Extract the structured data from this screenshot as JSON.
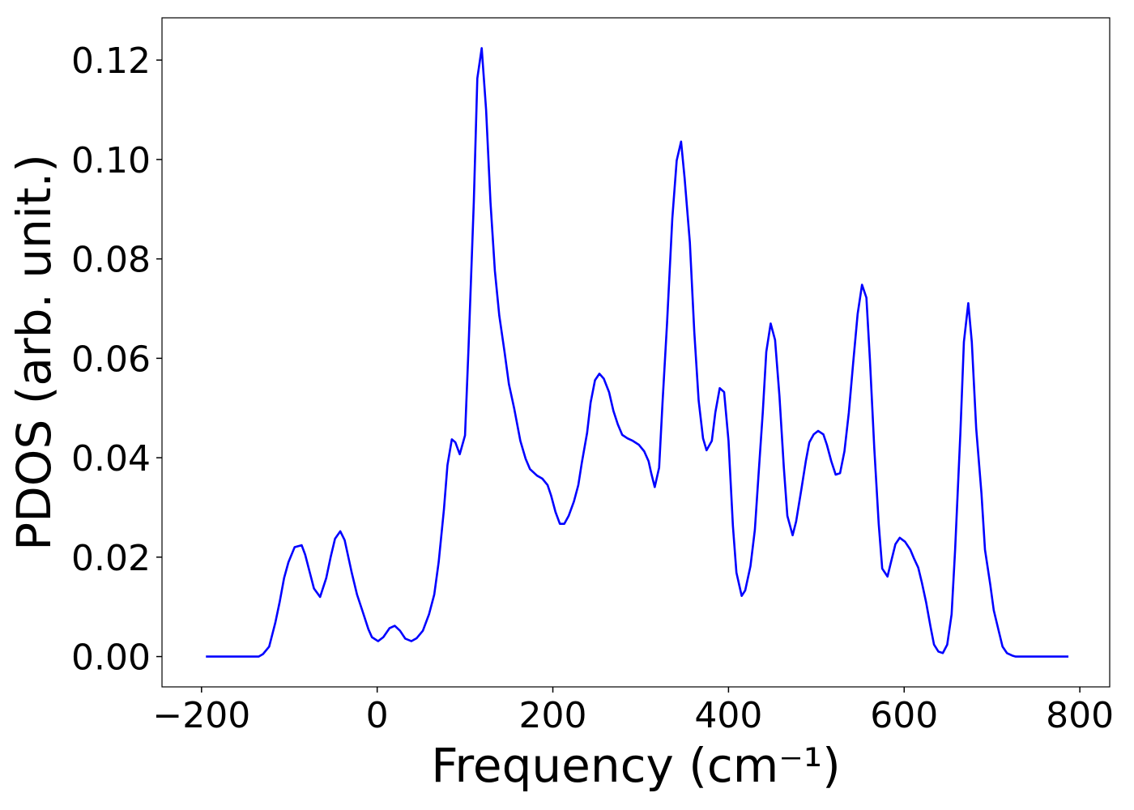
{
  "chart_data": {
    "type": "line",
    "xlabel": "Frequency (cm⁻¹)",
    "ylabel": "PDOS (arb. unit.)",
    "color": "#0000ff",
    "x": [
      -195,
      -135,
      -130,
      -123,
      -116,
      -111,
      -106,
      -101,
      -94,
      -86,
      -82,
      -72,
      -65,
      -58,
      -53,
      -48,
      -42,
      -37,
      -29,
      -23,
      -17,
      -10,
      -6,
      1,
      7,
      14,
      20,
      26,
      32,
      39,
      45,
      52,
      59,
      65,
      70,
      76,
      80,
      85,
      89,
      94,
      100,
      104,
      110,
      114,
      119,
      124,
      129,
      134,
      139,
      145,
      150,
      156,
      163,
      169,
      174,
      182,
      188,
      194,
      198,
      203,
      208,
      213,
      218,
      224,
      229,
      233,
      239,
      243,
      248,
      253,
      258,
      264,
      269,
      274,
      279,
      285,
      291,
      298,
      304,
      309,
      312,
      316,
      321,
      325,
      330,
      336,
      341,
      346,
      350,
      356,
      361,
      366,
      371,
      375,
      381,
      385,
      390,
      395,
      400,
      405,
      409,
      415,
      419,
      425,
      430,
      434,
      439,
      443,
      448,
      453,
      458,
      463,
      467,
      473,
      477,
      483,
      488,
      492,
      497,
      502,
      508,
      512,
      517,
      522,
      527,
      532,
      537,
      542,
      547,
      552,
      557,
      561,
      566,
      571,
      575,
      581,
      585,
      590,
      595,
      601,
      607,
      611,
      616,
      620,
      625,
      630,
      634,
      639,
      644,
      649,
      654,
      658,
      664,
      668,
      673,
      677,
      682,
      688,
      692,
      698,
      702,
      708,
      712,
      717,
      723,
      727,
      787
    ],
    "values": [
      0,
      0,
      0.0005,
      0.002,
      0.0068,
      0.011,
      0.0158,
      0.019,
      0.022,
      0.0224,
      0.0205,
      0.0137,
      0.012,
      0.0158,
      0.02,
      0.0237,
      0.0252,
      0.0234,
      0.0169,
      0.0125,
      0.0093,
      0.0055,
      0.0039,
      0.0031,
      0.0039,
      0.0057,
      0.0062,
      0.0052,
      0.0036,
      0.0031,
      0.0037,
      0.0052,
      0.0085,
      0.0125,
      0.019,
      0.0296,
      0.0385,
      0.0437,
      0.0431,
      0.0407,
      0.0445,
      0.0621,
      0.0914,
      0.1163,
      0.1224,
      0.11,
      0.0914,
      0.0776,
      0.0686,
      0.0613,
      0.0548,
      0.0499,
      0.0434,
      0.0398,
      0.0377,
      0.0364,
      0.0358,
      0.0345,
      0.0324,
      0.0291,
      0.0267,
      0.0267,
      0.0283,
      0.0312,
      0.0345,
      0.039,
      0.045,
      0.0511,
      0.0556,
      0.0569,
      0.0559,
      0.0532,
      0.0494,
      0.0467,
      0.0446,
      0.0439,
      0.0434,
      0.0426,
      0.0413,
      0.0393,
      0.0369,
      0.0341,
      0.038,
      0.0515,
      0.067,
      0.0881,
      0.0998,
      0.1036,
      0.0963,
      0.0833,
      0.0654,
      0.0515,
      0.0439,
      0.0415,
      0.0434,
      0.0491,
      0.054,
      0.0532,
      0.0434,
      0.0263,
      0.0169,
      0.0122,
      0.0133,
      0.0182,
      0.0255,
      0.0361,
      0.0491,
      0.0613,
      0.067,
      0.0637,
      0.0524,
      0.038,
      0.0283,
      0.0244,
      0.0272,
      0.0337,
      0.0393,
      0.0431,
      0.0447,
      0.0454,
      0.0447,
      0.0426,
      0.0393,
      0.0366,
      0.0369,
      0.0413,
      0.0491,
      0.0592,
      0.0689,
      0.0748,
      0.0722,
      0.0597,
      0.0418,
      0.0267,
      0.0177,
      0.0161,
      0.019,
      0.0226,
      0.0239,
      0.0231,
      0.0215,
      0.0198,
      0.0179,
      0.015,
      0.0109,
      0.006,
      0.0024,
      0.001,
      0.0007,
      0.0024,
      0.0085,
      0.0215,
      0.045,
      0.0633,
      0.0711,
      0.0633,
      0.0459,
      0.0328,
      0.0215,
      0.0145,
      0.0093,
      0.0049,
      0.002,
      0.0007,
      0.0002,
      0,
      0
    ],
    "xlim": [
      -245,
      834
    ],
    "ylim": [
      -0.0061,
      0.1285
    ],
    "xticks": [
      {
        "value": -200,
        "label": "−200"
      },
      0,
      200,
      400,
      600,
      800
    ],
    "yticks": [
      {
        "value": 0,
        "label": "0.00"
      },
      {
        "value": 0.02,
        "label": "0.02"
      },
      {
        "value": 0.04,
        "label": "0.04"
      },
      {
        "value": 0.06,
        "label": "0.06"
      },
      {
        "value": 0.08,
        "label": "0.08"
      },
      {
        "value": 0.1,
        "label": "0.10"
      },
      {
        "value": 0.12,
        "label": "0.12"
      }
    ]
  }
}
